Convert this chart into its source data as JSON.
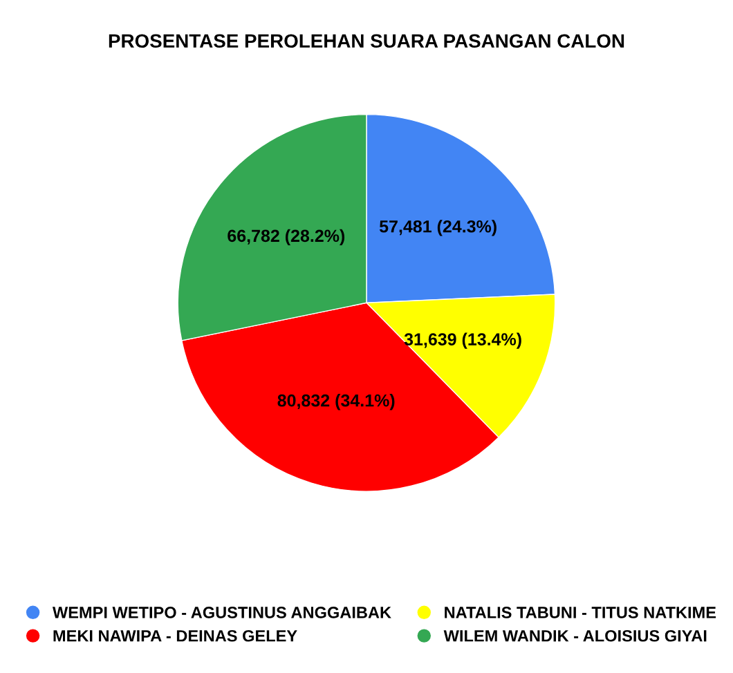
{
  "chart_data": {
    "type": "pie",
    "title": "PROSENTASE PEROLEHAN SUARA PASANGAN CALON",
    "categories": [
      "WEMPI WETIPO - AGUSTINUS ANGGAIBAK",
      "NATALIS TABUNI - TITUS NATKIME",
      "MEKI NAWIPA - DEINAS GELEY",
      "WILEM WANDIK - ALOISIUS GIYAI"
    ],
    "values": [
      57481,
      31639,
      80832,
      66782
    ],
    "value_labels": [
      "57,481 (24.3%)",
      "31,639 (13.4%)",
      "80,832 (34.1%)",
      "66,782 (28.2%)"
    ],
    "colors": [
      "#4285f4",
      "#ffff00",
      "#ff0000",
      "#34a853"
    ],
    "legend": "bottom"
  }
}
